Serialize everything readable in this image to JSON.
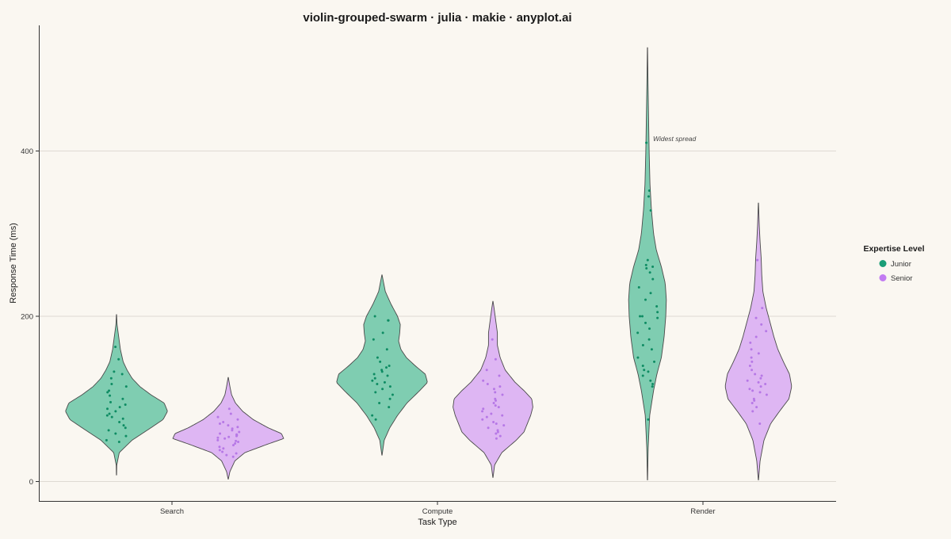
{
  "chart_data": {
    "type": "violin",
    "title": "violin-grouped-swarm · julia · makie · anyplot.ai",
    "xlabel": "Task Type",
    "ylabel": "Response Time (ms)",
    "categories": [
      "Search",
      "Compute",
      "Render"
    ],
    "yticks": [
      0,
      200,
      400
    ],
    "ylim": [
      -20,
      550
    ],
    "grid": "horizontal",
    "legend": {
      "title": "Expertise Level",
      "placement": "right"
    },
    "annotation": {
      "text": "Widest spread",
      "category": "Render",
      "group": "Junior",
      "y": 415
    },
    "colors": {
      "background": "#FAF7F1",
      "grid": "#DEDAD3",
      "axis": "#333333",
      "violin_outline": "#4A4A4A",
      "Junior_fill": "#7FCDB1",
      "Junior_point": "#0E8C63",
      "Senior_fill": "#DEB6F3",
      "Senior_point": "#B678E6"
    },
    "series": [
      {
        "name": "Junior",
        "color": "#1A9E77",
        "violins": [
          {
            "category": "Search",
            "ymin": 8,
            "ymax": 202,
            "profile": [
              [
                8,
                0.002
              ],
              [
                20,
                0.005
              ],
              [
                35,
                0.05
              ],
              [
                50,
                0.28
              ],
              [
                65,
                0.62
              ],
              [
                75,
                0.84
              ],
              [
                85,
                0.92
              ],
              [
                95,
                0.86
              ],
              [
                105,
                0.62
              ],
              [
                115,
                0.42
              ],
              [
                125,
                0.28
              ],
              [
                135,
                0.19
              ],
              [
                145,
                0.12
              ],
              [
                160,
                0.07
              ],
              [
                175,
                0.04
              ],
              [
                190,
                0.01
              ],
              [
                202,
                0.002
              ]
            ],
            "points": [
              163,
              148,
              133,
              125,
              115,
              110,
              108,
              104,
              100,
              96,
              93,
              90,
              88,
              85,
              82,
              80,
              78,
              76,
              72,
              68,
              65,
              62,
              58,
              55,
              50,
              48,
              118,
              130
            ]
          },
          {
            "category": "Compute",
            "ymin": 32,
            "ymax": 250,
            "profile": [
              [
                32,
                0.002
              ],
              [
                50,
                0.04
              ],
              [
                65,
                0.14
              ],
              [
                80,
                0.28
              ],
              [
                95,
                0.45
              ],
              [
                110,
                0.68
              ],
              [
                120,
                0.82
              ],
              [
                130,
                0.78
              ],
              [
                140,
                0.6
              ],
              [
                150,
                0.44
              ],
              [
                160,
                0.34
              ],
              [
                170,
                0.3
              ],
              [
                180,
                0.32
              ],
              [
                190,
                0.33
              ],
              [
                200,
                0.28
              ],
              [
                215,
                0.16
              ],
              [
                230,
                0.06
              ],
              [
                250,
                0.002
              ]
            ],
            "points": [
              200,
              195,
              180,
              172,
              160,
              150,
              145,
              140,
              138,
              135,
              133,
              130,
              128,
              125,
              122,
              120,
              118,
              115,
              112,
              108,
              105,
              100,
              95,
              90,
              80,
              75,
              195
            ]
          },
          {
            "category": "Render",
            "ymin": 2,
            "ymax": 525,
            "profile": [
              [
                2,
                0.002
              ],
              [
                40,
                0.012
              ],
              [
                80,
                0.04
              ],
              [
                110,
                0.11
              ],
              [
                130,
                0.17
              ],
              [
                150,
                0.25
              ],
              [
                175,
                0.3
              ],
              [
                200,
                0.33
              ],
              [
                220,
                0.34
              ],
              [
                240,
                0.32
              ],
              [
                260,
                0.25
              ],
              [
                280,
                0.16
              ],
              [
                300,
                0.11
              ],
              [
                330,
                0.07
              ],
              [
                360,
                0.045
              ],
              [
                400,
                0.03
              ],
              [
                440,
                0.02
              ],
              [
                480,
                0.01
              ],
              [
                525,
                0.002
              ]
            ],
            "points": [
              410,
              352,
              345,
              328,
              268,
              262,
              260,
              258,
              253,
              245,
              235,
              228,
              220,
              212,
              205,
              200,
              200,
              198,
              192,
              185,
              180,
              172,
              165,
              160,
              150,
              145,
              140,
              135,
              133,
              128,
              122,
              118,
              115,
              75
            ]
          }
        ]
      },
      {
        "name": "Senior",
        "color": "#C27BF2",
        "violins": [
          {
            "category": "Search",
            "ymin": 3,
            "ymax": 126,
            "profile": [
              [
                3,
                0.002
              ],
              [
                12,
                0.03
              ],
              [
                25,
                0.12
              ],
              [
                35,
                0.3
              ],
              [
                45,
                0.7
              ],
              [
                52,
                1.0
              ],
              [
                58,
                0.96
              ],
              [
                65,
                0.72
              ],
              [
                75,
                0.45
              ],
              [
                85,
                0.26
              ],
              [
                95,
                0.13
              ],
              [
                105,
                0.06
              ],
              [
                115,
                0.03
              ],
              [
                126,
                0.002
              ]
            ],
            "points": [
              88,
              82,
              78,
              75,
              72,
              70,
              68,
              66,
              64,
              62,
              60,
              58,
              57,
              56,
              55,
              54,
              53,
              52,
              50,
              49,
              48,
              46,
              44,
              42,
              40,
              38,
              36,
              34,
              32,
              30
            ]
          },
          {
            "category": "Compute",
            "ymin": 5,
            "ymax": 218,
            "profile": [
              [
                5,
                0.002
              ],
              [
                20,
                0.03
              ],
              [
                35,
                0.16
              ],
              [
                50,
                0.42
              ],
              [
                60,
                0.56
              ],
              [
                70,
                0.62
              ],
              [
                80,
                0.68
              ],
              [
                90,
                0.72
              ],
              [
                100,
                0.7
              ],
              [
                110,
                0.56
              ],
              [
                120,
                0.4
              ],
              [
                135,
                0.22
              ],
              [
                150,
                0.13
              ],
              [
                165,
                0.08
              ],
              [
                180,
                0.08
              ],
              [
                195,
                0.05
              ],
              [
                210,
                0.02
              ],
              [
                218,
                0.002
              ]
            ],
            "points": [
              172,
              148,
              135,
              128,
              122,
              118,
              115,
              112,
              108,
              105,
              100,
              98,
              95,
              92,
              90,
              88,
              85,
              82,
              80,
              78,
              75,
              72,
              70,
              68,
              65,
              62,
              60,
              58,
              55,
              52
            ]
          },
          {
            "category": "Render",
            "ymin": 2,
            "ymax": 337,
            "profile": [
              [
                2,
                0.002
              ],
              [
                25,
                0.03
              ],
              [
                50,
                0.1
              ],
              [
                70,
                0.22
              ],
              [
                85,
                0.38
              ],
              [
                100,
                0.55
              ],
              [
                115,
                0.6
              ],
              [
                130,
                0.56
              ],
              [
                145,
                0.45
              ],
              [
                160,
                0.35
              ],
              [
                175,
                0.28
              ],
              [
                190,
                0.22
              ],
              [
                210,
                0.14
              ],
              [
                230,
                0.08
              ],
              [
                250,
                0.06
              ],
              [
                270,
                0.05
              ],
              [
                290,
                0.03
              ],
              [
                310,
                0.015
              ],
              [
                337,
                0.002
              ]
            ],
            "points": [
              268,
              210,
              198,
              190,
              182,
              175,
              168,
              160,
              155,
              150,
              145,
              140,
              135,
              130,
              128,
              125,
              122,
              120,
              118,
              115,
              112,
              110,
              108,
              105,
              100,
              98,
              95,
              90,
              85,
              70
            ]
          }
        ]
      }
    ]
  }
}
